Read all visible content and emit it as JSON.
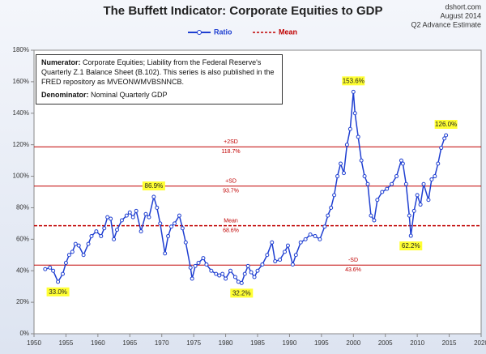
{
  "chart_data": {
    "type": "line",
    "title": "The Buffett Indicator: Corporate Equities to GDP",
    "source": "dshort.com",
    "date_note": "August 2014",
    "estimate_note": "Q2 Advance Estimate",
    "note": {
      "numerator_label": "Numerator:",
      "numerator_text": "Corporate Equities; Liability from the Federal Reserve's Quarterly Z.1 Balance Sheet (B.102). This series is also published in the FRED repository  as MVEONWMVBSNNCB.",
      "denominator_label": "Denominator:",
      "denominator_text": "Nominal Quarterly GDP"
    },
    "xlim": [
      1950,
      2020
    ],
    "xticks": [
      1950,
      1955,
      1960,
      1965,
      1970,
      1975,
      1980,
      1985,
      1990,
      1995,
      2000,
      2005,
      2010,
      2015,
      2020
    ],
    "ylim": [
      0,
      180
    ],
    "yticks": [
      {
        "value": 0,
        "label": "0%"
      },
      {
        "value": 20,
        "label": "20%"
      },
      {
        "value": 40,
        "label": "40%"
      },
      {
        "value": 60,
        "label": "60%"
      },
      {
        "value": 80,
        "label": "80%"
      },
      {
        "value": 100,
        "label": "100%"
      },
      {
        "value": 120,
        "label": "120%"
      },
      {
        "value": 140,
        "label": "140%"
      },
      {
        "value": 160,
        "label": "160%"
      },
      {
        "value": 180,
        "label": "180%"
      }
    ],
    "x": [
      1951.75,
      1952.5,
      1953,
      1953.75,
      1954.5,
      1955,
      1955.5,
      1956,
      1956.5,
      1957,
      1957.75,
      1958.5,
      1959,
      1959.75,
      1960.5,
      1961,
      1961.5,
      1962,
      1962.5,
      1963,
      1963.75,
      1964.5,
      1965,
      1965.5,
      1966,
      1966.75,
      1967.5,
      1968,
      1968.75,
      1969.25,
      1969.75,
      1970.5,
      1971,
      1971.5,
      1972,
      1972.75,
      1973.25,
      1973.75,
      1974.5,
      1974.75,
      1975.25,
      1975.75,
      1976.5,
      1977,
      1977.75,
      1978.5,
      1979,
      1979.5,
      1980,
      1980.75,
      1981.5,
      1982,
      1982.5,
      1983,
      1983.5,
      1984,
      1984.5,
      1985,
      1985.75,
      1986.5,
      1987.25,
      1987.75,
      1988.5,
      1989.25,
      1989.75,
      1990.5,
      1991,
      1991.75,
      1992.5,
      1993.25,
      1994,
      1994.75,
      1995.5,
      1996,
      1996.5,
      1997,
      1997.5,
      1998,
      1998.5,
      1999,
      1999.5,
      2000,
      2000.25,
      2000.75,
      2001.25,
      2001.75,
      2002.25,
      2002.75,
      2003.25,
      2003.75,
      2004.5,
      2005.25,
      2006,
      2006.75,
      2007.5,
      2007.75,
      2008.25,
      2008.75,
      2009,
      2009.5,
      2010,
      2010.5,
      2011,
      2011.75,
      2012.25,
      2012.75,
      2013.25,
      2013.75,
      2014.25,
      2014.5
    ],
    "series": [
      {
        "name": "Ratio",
        "color": "#1f3fd1",
        "values": [
          41,
          42,
          40,
          33.0,
          38,
          45,
          50,
          52,
          57,
          56,
          50,
          57,
          62,
          65,
          62,
          67,
          74,
          73,
          60,
          66,
          72,
          75,
          77,
          74,
          78,
          65,
          76,
          74,
          86.9,
          80,
          70,
          51,
          62,
          68,
          70,
          75,
          67,
          58,
          42,
          35,
          43,
          45,
          48,
          44,
          40,
          38,
          37,
          38,
          35,
          40,
          36,
          33,
          32.2,
          38,
          43,
          39,
          36,
          40,
          44,
          50,
          58,
          46,
          47,
          52,
          56,
          44,
          50,
          58,
          60,
          63,
          62,
          60,
          68,
          75,
          80,
          88,
          100,
          108,
          102,
          120,
          130,
          153.6,
          140,
          125,
          110,
          100,
          95,
          75,
          72,
          85,
          90,
          92,
          95,
          100,
          110,
          108,
          95,
          75,
          62.2,
          78,
          88,
          82,
          95,
          85,
          98,
          100,
          108,
          118,
          124,
          126.0
        ],
        "value_labels": [
          null,
          null,
          null,
          "33.0%",
          null,
          null,
          null,
          null,
          null,
          null,
          null,
          null,
          null,
          null,
          null,
          null,
          null,
          null,
          null,
          null,
          null,
          null,
          null,
          null,
          null,
          null,
          null,
          null,
          "86.9%",
          null,
          null,
          null,
          null,
          null,
          null,
          null,
          null,
          null,
          null,
          null,
          null,
          null,
          null,
          null,
          null,
          null,
          null,
          null,
          null,
          null,
          null,
          null,
          "32.2%",
          null,
          null,
          null,
          null,
          null,
          null,
          null,
          null,
          null,
          null,
          null,
          null,
          null,
          null,
          null,
          null,
          null,
          null,
          null,
          null,
          null,
          null,
          null,
          null,
          null,
          null,
          null,
          null,
          "153.6%",
          null,
          null,
          null,
          null,
          null,
          null,
          null,
          null,
          null,
          null,
          null,
          null,
          null,
          null,
          null,
          null,
          "62.2%",
          null,
          null,
          null,
          null,
          null,
          null,
          null,
          null,
          null,
          null,
          "126.0%"
        ]
      }
    ],
    "reference_lines": {
      "name": "Mean",
      "color": "#c00000",
      "lines": [
        {
          "label": "+2SD",
          "value": 118.7,
          "value_label": "118.7%"
        },
        {
          "label": "+SD",
          "value": 93.7,
          "value_label": "93.7%"
        },
        {
          "label": "Mean",
          "value": 68.6,
          "value_label": "68.6%"
        },
        {
          "label": "-SD",
          "value": 43.6,
          "value_label": "43.6%"
        }
      ]
    }
  }
}
